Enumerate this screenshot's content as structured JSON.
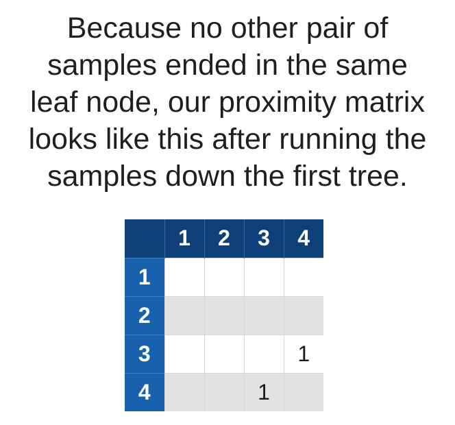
{
  "caption": {
    "lines": [
      "Because no other pair of",
      "samples ended in the same",
      "leaf node, our proximity matrix",
      "looks like this after running the",
      "samples down the first tree."
    ]
  },
  "matrix": {
    "column_headers": [
      "1",
      "2",
      "3",
      "4"
    ],
    "row_headers": [
      "1",
      "2",
      "3",
      "4"
    ],
    "cells": [
      [
        "",
        "",
        "",
        ""
      ],
      [
        "",
        "",
        "",
        ""
      ],
      [
        "",
        "",
        "",
        "1"
      ],
      [
        "",
        "",
        "1",
        ""
      ]
    ]
  },
  "colors": {
    "header_dark_blue": "#0e3f78",
    "row_header_blue": "#1761ad",
    "stripe_gray": "#e2e2e4",
    "cell_white": "#ffffff"
  }
}
